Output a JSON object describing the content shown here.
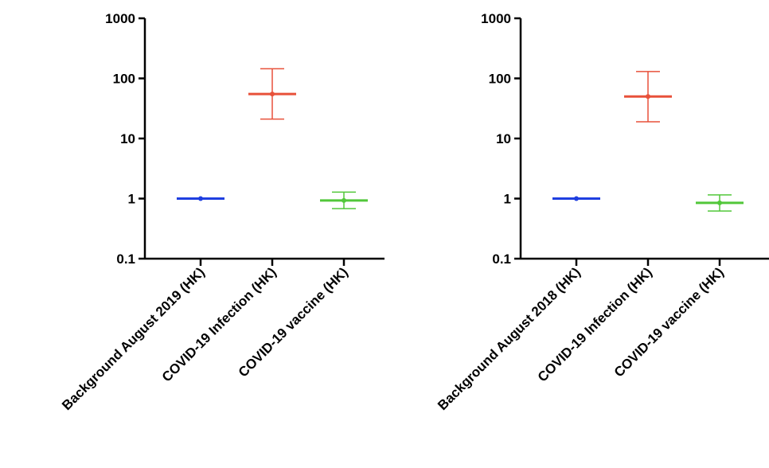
{
  "chart_data": [
    {
      "type": "scatter",
      "yscale": "log",
      "ylim": [
        0.1,
        1000
      ],
      "yticks": [
        "1000",
        "100",
        "10",
        "1",
        "0.1"
      ],
      "yticks_values": [
        1000,
        100,
        10,
        1,
        0.1
      ],
      "categories": [
        "Background August 2019 (HK)",
        "COVID-19 Infection (HK)",
        "COVID-19 vaccine (HK)"
      ],
      "series": [
        {
          "values": [
            1.0,
            55,
            0.93
          ],
          "lower": [
            1.0,
            21,
            0.68
          ],
          "upper": [
            1.0,
            145,
            1.28
          ]
        }
      ],
      "colors": [
        "#1f3fe0",
        "#e8513a",
        "#52c73a"
      ],
      "title": "",
      "xlabel": "",
      "ylabel": ""
    },
    {
      "type": "scatter",
      "yscale": "log",
      "ylim": [
        0.1,
        1000
      ],
      "yticks": [
        "1000",
        "100",
        "10",
        "1",
        "0.1"
      ],
      "yticks_values": [
        1000,
        100,
        10,
        1,
        0.1
      ],
      "categories": [
        "Background August 2018 (HK)",
        "COVID-19 Infection (HK)",
        "COVID-19 vaccine (HK)"
      ],
      "series": [
        {
          "values": [
            1.0,
            50,
            0.85
          ],
          "lower": [
            1.0,
            19,
            0.62
          ],
          "upper": [
            1.0,
            130,
            1.15
          ]
        }
      ],
      "colors": [
        "#1f3fe0",
        "#e8513a",
        "#52c73a"
      ],
      "title": "",
      "xlabel": "",
      "ylabel": ""
    }
  ]
}
